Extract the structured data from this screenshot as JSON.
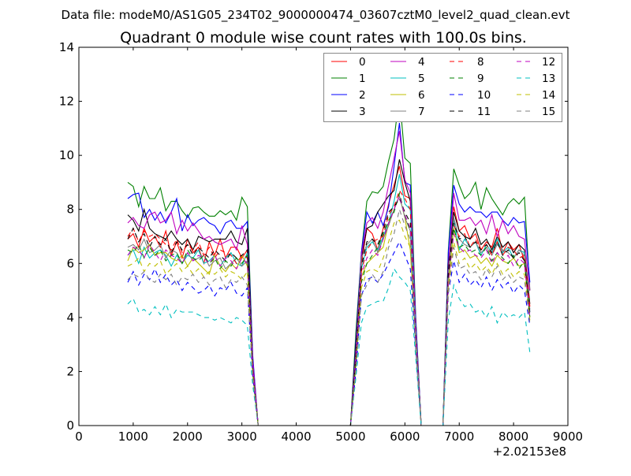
{
  "suptitle": "Data file: modeM0/AS1G05_234T02_9000000474_03607cztM0_level2_quad_clean.evt",
  "chart_data": {
    "type": "line",
    "title": "Quadrant 0 module wise count rates with 100.0s bins.",
    "xlabel": "",
    "ylabel": "",
    "x_offset_label": "+2.02153e8",
    "xlim": [
      0,
      9000
    ],
    "ylim": [
      0,
      14
    ],
    "xticks": [
      "0",
      "1000",
      "2000",
      "3000",
      "4000",
      "5000",
      "6000",
      "7000",
      "8000",
      "9000"
    ],
    "yticks": [
      "0",
      "2",
      "4",
      "6",
      "8",
      "10",
      "12",
      "14"
    ],
    "grid": false,
    "legend_placement": "top-right",
    "legend_columns": 4,
    "x_start": 900,
    "x_step": 100,
    "series": [
      {
        "name": "0",
        "color": "#ff0000",
        "dashed": false,
        "values": [
          6.9,
          7.1,
          6.6,
          7.3,
          6.8,
          7.0,
          6.6,
          7.2,
          6.3,
          6.8,
          6.2,
          6.9,
          6.4,
          6.6,
          6.0,
          6.8,
          6.3,
          6.9,
          6.2,
          6.6,
          6.6,
          6.2,
          6.5,
          2.2,
          0,
          0,
          0,
          0,
          0,
          0,
          0,
          0,
          0,
          0,
          0,
          0,
          0,
          0,
          0,
          0,
          0,
          0,
          2.5,
          6.0,
          7.3,
          7.1,
          6.5,
          7.3,
          8.2,
          8.9,
          9.6,
          8.5,
          8.4,
          3.5,
          0,
          0,
          0,
          0,
          0,
          5.5,
          8.1,
          7.2,
          7.4,
          6.9,
          7.1,
          6.5,
          6.8,
          6.6,
          7.3,
          6.4,
          6.8,
          6.5,
          6.7,
          6.1,
          4.2
        ]
      },
      {
        "name": "1",
        "color": "#008000",
        "dashed": false,
        "values": [
          9.0,
          8.85,
          8.1,
          8.85,
          8.4,
          8.4,
          8.8,
          7.95,
          8.3,
          8.3,
          7.95,
          7.7,
          8.05,
          8.1,
          7.9,
          7.75,
          7.75,
          7.95,
          7.8,
          7.95,
          7.6,
          8.45,
          8.1,
          2.5,
          0,
          0,
          0,
          0,
          0,
          0,
          0,
          0,
          0,
          0,
          0,
          0,
          0,
          0,
          0,
          0,
          0,
          0,
          3.5,
          6.4,
          8.3,
          8.65,
          8.6,
          8.85,
          9.8,
          10.6,
          12.2,
          9.9,
          9.7,
          4.0,
          0,
          0,
          0,
          0,
          0,
          6.5,
          9.5,
          8.9,
          8.4,
          8.6,
          9.0,
          8.0,
          8.8,
          8.4,
          8.1,
          7.8,
          8.2,
          8.4,
          8.2,
          8.45,
          5.0
        ]
      },
      {
        "name": "2",
        "color": "#0000ff",
        "dashed": false,
        "values": [
          8.4,
          8.55,
          8.6,
          7.7,
          8.0,
          7.6,
          7.9,
          7.5,
          7.9,
          8.4,
          7.2,
          7.8,
          7.4,
          7.6,
          7.7,
          7.5,
          7.4,
          7.1,
          7.5,
          7.6,
          7.3,
          7.3,
          7.55,
          2.6,
          0,
          0,
          0,
          0,
          0,
          0,
          0,
          0,
          0,
          0,
          0,
          0,
          0,
          0,
          0,
          0,
          0,
          0,
          3.2,
          6.4,
          7.9,
          7.5,
          7.9,
          7.4,
          8.1,
          9.6,
          11.2,
          9.0,
          8.9,
          3.9,
          0,
          0,
          0,
          0,
          0,
          6.4,
          8.9,
          8.2,
          7.9,
          8.1,
          7.9,
          7.9,
          7.7,
          7.9,
          7.9,
          7.6,
          7.4,
          7.7,
          7.5,
          7.55,
          5.3
        ]
      },
      {
        "name": "3",
        "color": "#000000",
        "dashed": false,
        "values": [
          7.8,
          7.6,
          7.2,
          8.0,
          7.3,
          7.1,
          7.0,
          6.9,
          7.2,
          6.9,
          6.7,
          6.9,
          6.5,
          7.0,
          6.9,
          6.8,
          6.9,
          6.9,
          6.9,
          7.2,
          6.8,
          6.7,
          7.3,
          2.3,
          0,
          0,
          0,
          0,
          0,
          0,
          0,
          0,
          0,
          0,
          0,
          0,
          0,
          0,
          0,
          0,
          0,
          0,
          3.0,
          6.2,
          7.3,
          7.4,
          7.9,
          8.2,
          8.5,
          8.7,
          9.85,
          9.0,
          8.3,
          3.6,
          0,
          0,
          0,
          0,
          0,
          6.0,
          7.9,
          7.2,
          7.0,
          6.9,
          7.3,
          6.7,
          6.9,
          6.5,
          7.0,
          6.6,
          6.8,
          6.4,
          6.7,
          6.5,
          4.5
        ]
      },
      {
        "name": "4",
        "color": "#bf00bf",
        "dashed": false,
        "values": [
          7.5,
          7.7,
          7.4,
          7.3,
          7.8,
          7.9,
          7.5,
          7.6,
          7.9,
          7.1,
          7.6,
          7.2,
          7.5,
          7.2,
          6.9,
          7.0,
          6.8,
          6.7,
          6.8,
          6.9,
          6.5,
          7.4,
          6.7,
          2.4,
          0,
          0,
          0,
          0,
          0,
          0,
          0,
          0,
          0,
          0,
          0,
          0,
          0,
          0,
          0,
          0,
          0,
          0,
          2.8,
          6.3,
          7.5,
          7.7,
          7.3,
          7.9,
          8.9,
          9.9,
          10.9,
          9.1,
          8.6,
          3.7,
          0,
          0,
          0,
          0,
          0,
          5.8,
          8.6,
          7.6,
          7.6,
          7.7,
          7.4,
          7.6,
          7.1,
          7.8,
          7.0,
          7.6,
          7.1,
          7.4,
          7.0,
          6.9,
          5.0
        ]
      },
      {
        "name": "5",
        "color": "#00bfbf",
        "dashed": false,
        "values": [
          6.3,
          6.5,
          6.0,
          6.6,
          6.2,
          6.4,
          6.5,
          6.3,
          5.9,
          6.3,
          6.0,
          6.3,
          6.2,
          6.5,
          6.0,
          6.1,
          6.3,
          5.9,
          6.2,
          6.4,
          6.0,
          5.9,
          6.4,
          2.0,
          0,
          0,
          0,
          0,
          0,
          0,
          0,
          0,
          0,
          0,
          0,
          0,
          0,
          0,
          0,
          0,
          0,
          0,
          2.4,
          5.8,
          6.6,
          6.8,
          6.5,
          7.0,
          7.5,
          8.3,
          9.3,
          8.2,
          8.0,
          3.4,
          0,
          0,
          0,
          0,
          0,
          5.5,
          7.6,
          6.5,
          6.9,
          6.6,
          6.8,
          6.3,
          6.7,
          6.4,
          6.9,
          6.4,
          6.6,
          6.2,
          6.5,
          6.4,
          4.2
        ]
      },
      {
        "name": "6",
        "color": "#bfbf00",
        "dashed": false,
        "values": [
          6.1,
          6.6,
          6.4,
          6.5,
          6.7,
          6.3,
          6.4,
          6.4,
          6.2,
          6.1,
          6.3,
          5.9,
          6.2,
          6.0,
          5.8,
          5.6,
          6.3,
          5.9,
          5.7,
          6.0,
          5.8,
          6.3,
          5.9,
          1.9,
          0,
          0,
          0,
          0,
          0,
          0,
          0,
          0,
          0,
          0,
          0,
          0,
          0,
          0,
          0,
          0,
          0,
          0,
          2.3,
          5.5,
          6.0,
          6.2,
          6.4,
          6.6,
          7.5,
          8.0,
          8.5,
          7.7,
          6.5,
          3.0,
          0,
          0,
          0,
          0,
          0,
          5.2,
          7.3,
          6.4,
          6.5,
          6.2,
          6.3,
          6.0,
          6.2,
          5.9,
          6.3,
          6.1,
          6.0,
          6.2,
          5.9,
          6.0,
          4.0
        ]
      },
      {
        "name": "7",
        "color": "#808080",
        "dashed": false,
        "values": [
          6.6,
          6.7,
          6.5,
          6.9,
          6.4,
          6.5,
          6.7,
          6.2,
          6.5,
          6.4,
          6.0,
          6.4,
          6.1,
          6.2,
          6.3,
          5.9,
          6.1,
          6.2,
          5.8,
          6.0,
          6.2,
          5.9,
          6.1,
          2.0,
          0,
          0,
          0,
          0,
          0,
          0,
          0,
          0,
          0,
          0,
          0,
          0,
          0,
          0,
          0,
          0,
          0,
          0,
          2.6,
          6.2,
          6.7,
          6.9,
          6.4,
          6.9,
          7.4,
          8.0,
          8.5,
          7.7,
          7.2,
          3.2,
          0,
          0,
          0,
          0,
          0,
          5.6,
          7.7,
          6.9,
          6.7,
          6.6,
          6.8,
          6.4,
          6.6,
          6.3,
          6.7,
          6.5,
          6.4,
          6.2,
          6.5,
          6.3,
          4.3
        ]
      },
      {
        "name": "8",
        "color": "#ff0000",
        "dashed": true,
        "values": [
          7.0,
          7.3,
          6.8,
          7.2,
          7.0,
          7.1,
          6.9,
          6.7,
          6.5,
          6.9,
          6.4,
          6.7,
          6.5,
          6.8,
          6.3,
          6.6,
          6.2,
          6.5,
          6.4,
          6.3,
          6.0,
          6.3,
          6.2,
          2.1,
          0,
          0,
          0,
          0,
          0,
          0,
          0,
          0,
          0,
          0,
          0,
          0,
          0,
          0,
          0,
          0,
          0,
          0,
          2.5,
          5.7,
          6.5,
          6.8,
          6.9,
          7.0,
          7.8,
          8.1,
          8.7,
          8.4,
          8.0,
          3.3,
          0,
          0,
          0,
          0,
          0,
          5.6,
          7.4,
          7.0,
          7.1,
          6.6,
          6.9,
          6.5,
          6.7,
          6.3,
          6.8,
          6.3,
          6.6,
          6.5,
          6.2,
          6.3,
          4.4
        ]
      },
      {
        "name": "9",
        "color": "#008000",
        "dashed": true,
        "values": [
          6.5,
          6.4,
          6.7,
          6.2,
          6.6,
          6.3,
          6.5,
          6.1,
          6.3,
          6.4,
          6.0,
          6.5,
          6.2,
          6.1,
          6.3,
          6.0,
          6.2,
          5.8,
          6.1,
          5.9,
          6.2,
          6.0,
          6.3,
          2.0,
          0,
          0,
          0,
          0,
          0,
          0,
          0,
          0,
          0,
          0,
          0,
          0,
          0,
          0,
          0,
          0,
          0,
          0,
          2.4,
          5.3,
          6.0,
          6.3,
          6.6,
          7.1,
          7.6,
          7.9,
          8.6,
          7.8,
          7.2,
          3.1,
          0,
          0,
          0,
          0,
          0,
          5.4,
          7.3,
          6.6,
          6.7,
          6.4,
          6.5,
          6.3,
          6.6,
          6.1,
          6.4,
          6.2,
          6.0,
          6.3,
          5.8,
          6.1,
          4.0
        ]
      },
      {
        "name": "10",
        "color": "#0000ff",
        "dashed": true,
        "values": [
          5.3,
          5.7,
          5.2,
          5.6,
          5.4,
          5.8,
          5.3,
          5.6,
          5.2,
          5.4,
          5.0,
          5.3,
          5.1,
          4.9,
          5.0,
          5.2,
          4.8,
          5.1,
          5.0,
          5.3,
          4.9,
          4.8,
          5.1,
          1.8,
          0,
          0,
          0,
          0,
          0,
          0,
          0,
          0,
          0,
          0,
          0,
          0,
          0,
          0,
          0,
          0,
          0,
          0,
          2.0,
          4.8,
          5.4,
          5.5,
          5.3,
          5.6,
          6.0,
          6.4,
          6.8,
          6.3,
          5.8,
          2.8,
          0,
          0,
          0,
          0,
          0,
          4.9,
          6.1,
          5.3,
          5.6,
          5.2,
          5.4,
          5.1,
          5.5,
          5.0,
          5.4,
          5.1,
          5.3,
          4.9,
          5.2,
          5.0,
          3.7
        ]
      },
      {
        "name": "11",
        "color": "#000000",
        "dashed": true,
        "values": [
          6.9,
          7.3,
          6.8,
          7.1,
          6.6,
          7.0,
          6.7,
          6.9,
          6.4,
          6.8,
          6.5,
          6.7,
          6.3,
          6.6,
          6.4,
          6.2,
          6.5,
          6.3,
          6.1,
          6.4,
          6.2,
          6.3,
          6.5,
          2.1,
          0,
          0,
          0,
          0,
          0,
          0,
          0,
          0,
          0,
          0,
          0,
          0,
          0,
          0,
          0,
          0,
          0,
          0,
          2.6,
          5.9,
          6.8,
          6.9,
          6.7,
          7.2,
          7.9,
          8.1,
          8.4,
          7.9,
          7.5,
          3.3,
          0,
          0,
          0,
          0,
          0,
          5.7,
          7.5,
          6.9,
          7.0,
          6.6,
          6.8,
          6.5,
          6.7,
          6.4,
          6.8,
          6.3,
          6.5,
          6.2,
          6.4,
          6.1,
          4.1
        ]
      },
      {
        "name": "12",
        "color": "#bf00bf",
        "dashed": true,
        "values": [
          6.3,
          6.6,
          6.5,
          6.2,
          6.7,
          6.4,
          6.1,
          6.5,
          6.3,
          6.2,
          6.0,
          6.4,
          6.1,
          6.3,
          6.2,
          6.0,
          6.3,
          5.9,
          6.2,
          6.1,
          5.8,
          6.2,
          6.0,
          2.0,
          0,
          0,
          0,
          0,
          0,
          0,
          0,
          0,
          0,
          0,
          0,
          0,
          0,
          0,
          0,
          0,
          0,
          0,
          2.4,
          5.6,
          6.2,
          6.5,
          6.3,
          6.9,
          7.5,
          8.0,
          8.5,
          7.8,
          7.3,
          3.2,
          0,
          0,
          0,
          0,
          0,
          5.3,
          7.1,
          6.6,
          6.4,
          6.5,
          6.3,
          6.2,
          6.5,
          6.0,
          6.4,
          6.1,
          6.3,
          5.9,
          6.2,
          6.0,
          4.0
        ]
      },
      {
        "name": "13",
        "color": "#00bfbf",
        "dashed": true,
        "values": [
          4.5,
          4.7,
          4.2,
          4.3,
          4.1,
          4.4,
          4.1,
          4.5,
          4.0,
          4.3,
          4.2,
          4.2,
          4.2,
          4.1,
          4.0,
          4.0,
          3.9,
          4.0,
          3.9,
          3.8,
          4.0,
          3.9,
          3.7,
          1.5,
          0,
          0,
          0,
          0,
          0,
          0,
          0,
          0,
          0,
          0,
          0,
          0,
          0,
          0,
          0,
          0,
          0,
          0,
          1.8,
          3.8,
          4.4,
          4.5,
          4.6,
          4.6,
          5.1,
          5.8,
          5.5,
          5.3,
          5.0,
          2.5,
          0,
          0,
          0,
          0,
          0,
          3.9,
          5.2,
          4.7,
          4.4,
          4.5,
          4.2,
          4.3,
          4.0,
          4.4,
          3.8,
          4.2,
          4.0,
          4.1,
          4.0,
          4.2,
          2.7
        ]
      },
      {
        "name": "14",
        "color": "#bfbf00",
        "dashed": true,
        "values": [
          5.9,
          6.0,
          6.2,
          5.7,
          6.0,
          5.9,
          6.1,
          5.6,
          5.8,
          6.0,
          5.7,
          5.9,
          5.6,
          5.8,
          5.5,
          5.7,
          5.6,
          5.8,
          5.5,
          5.7,
          5.6,
          5.4,
          5.7,
          1.9,
          0,
          0,
          0,
          0,
          0,
          0,
          0,
          0,
          0,
          0,
          0,
          0,
          0,
          0,
          0,
          0,
          0,
          0,
          2.2,
          5.1,
          5.7,
          5.8,
          5.7,
          6.2,
          6.8,
          7.5,
          7.6,
          7.0,
          6.6,
          3.0,
          0,
          0,
          0,
          0,
          0,
          5.1,
          6.8,
          6.0,
          6.2,
          5.8,
          6.0,
          5.7,
          5.9,
          5.6,
          6.0,
          5.6,
          5.8,
          5.5,
          5.7,
          5.6,
          3.9
        ]
      },
      {
        "name": "15",
        "color": "#808080",
        "dashed": true,
        "values": [
          5.4,
          5.6,
          5.5,
          5.7,
          5.4,
          5.3,
          5.6,
          5.4,
          5.6,
          5.2,
          5.5,
          5.4,
          5.6,
          5.3,
          5.5,
          5.2,
          5.4,
          5.5,
          5.1,
          5.4,
          5.3,
          5.5,
          5.2,
          1.8,
          0,
          0,
          0,
          0,
          0,
          0,
          0,
          0,
          0,
          0,
          0,
          0,
          0,
          0,
          0,
          0,
          0,
          0,
          2.1,
          4.8,
          5.2,
          5.6,
          5.3,
          5.7,
          6.6,
          7.1,
          8.0,
          7.4,
          6.9,
          2.9,
          0,
          0,
          0,
          0,
          0,
          4.9,
          6.6,
          5.8,
          5.9,
          5.6,
          5.7,
          5.4,
          5.8,
          5.5,
          5.9,
          5.4,
          5.6,
          5.3,
          5.5,
          5.4,
          3.8
        ]
      }
    ]
  }
}
